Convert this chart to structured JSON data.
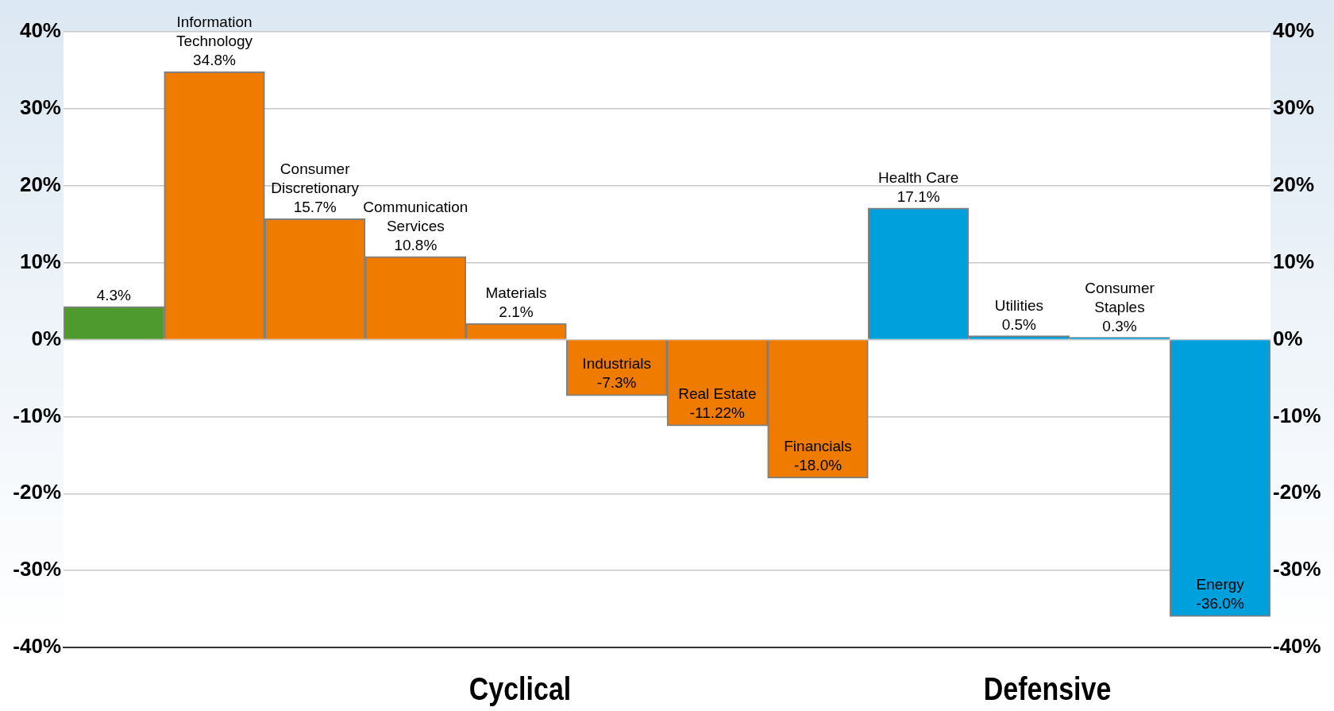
{
  "chart_data": {
    "type": "bar",
    "categories": [
      null,
      "Information Technology",
      "Consumer Discretionary",
      "Communication Services",
      "Materials",
      "Industrials",
      "Real Estate",
      "Financials",
      "Health Care",
      "Utilities",
      "Consumer Staples",
      "Energy"
    ],
    "values": [
      4.3,
      34.8,
      15.7,
      10.8,
      2.1,
      -7.3,
      -11.22,
      -18.0,
      17.1,
      0.5,
      0.3,
      -36.0
    ],
    "value_labels": [
      "4.3%",
      "34.8%",
      "15.7%",
      "10.8%",
      "2.1%",
      "-7.3%",
      "-11.22%",
      "-18.0%",
      "17.1%",
      "0.5%",
      "0.3%",
      "-36.0%"
    ],
    "colors": [
      "#4e9a2e",
      "#ef7b00",
      "#ef7b00",
      "#ef7b00",
      "#ef7b00",
      "#ef7b00",
      "#ef7b00",
      "#ef7b00",
      "#00a0dc",
      "#00a0dc",
      "#00a0dc",
      "#00a0dc"
    ],
    "ylim": [
      -40,
      40
    ],
    "yticks": [
      {
        "value": -40,
        "label": "-40%"
      },
      {
        "value": -30,
        "label": "-30%"
      },
      {
        "value": -20,
        "label": "-20%"
      },
      {
        "value": -10,
        "label": "-10%"
      },
      {
        "value": 0,
        "label": "0%"
      },
      {
        "value": 10,
        "label": "10%"
      },
      {
        "value": 20,
        "label": "20%"
      },
      {
        "value": 30,
        "label": "30%"
      },
      {
        "value": 40,
        "label": "40%"
      }
    ],
    "y2lim": [
      -40,
      40
    ],
    "y2ticks": [
      {
        "value": -40,
        "label": "-40%"
      },
      {
        "value": -30,
        "label": "-30%"
      },
      {
        "value": -20,
        "label": "-20%"
      },
      {
        "value": -10,
        "label": "-10%"
      },
      {
        "value": 0,
        "label": "0%"
      },
      {
        "value": 10,
        "label": "10%"
      },
      {
        "value": 20,
        "label": "20%"
      },
      {
        "value": 30,
        "label": "30%"
      },
      {
        "value": 40,
        "label": "40%"
      }
    ],
    "grid": "y",
    "legend": false,
    "annotations": [
      "Cyclical",
      "Defensive"
    ]
  }
}
